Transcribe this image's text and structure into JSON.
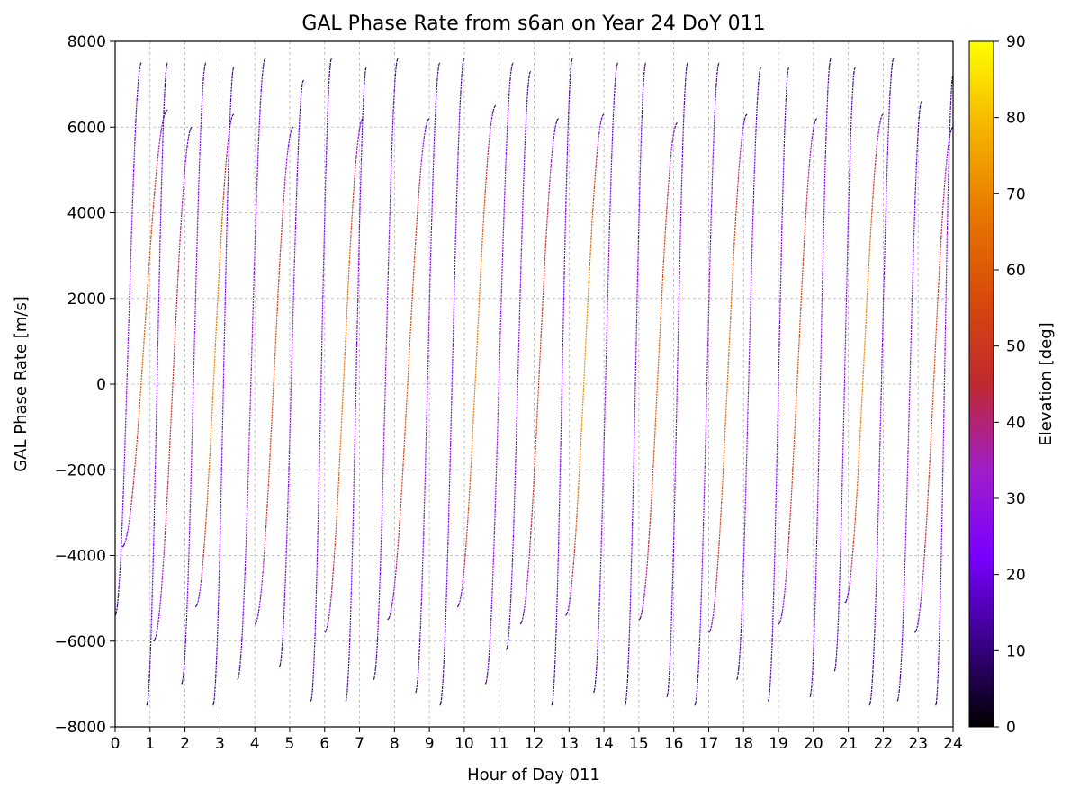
{
  "chart_data": {
    "type": "scatter",
    "title": "GAL Phase Rate from s6an on Year 24 DoY 011",
    "xlabel": "Hour of Day 011",
    "ylabel": "GAL Phase Rate [m/s]",
    "xlim": [
      0,
      24
    ],
    "ylim": [
      -8000,
      8000
    ],
    "x_ticks": [
      0,
      1,
      2,
      3,
      4,
      5,
      6,
      7,
      8,
      9,
      10,
      11,
      12,
      13,
      14,
      15,
      16,
      17,
      18,
      19,
      20,
      21,
      22,
      23,
      24
    ],
    "y_ticks": [
      -8000,
      -6000,
      -4000,
      -2000,
      0,
      2000,
      4000,
      6000,
      8000
    ],
    "grid": true,
    "colorbar": {
      "label": "Elevation [deg]",
      "range": [
        0,
        90
      ],
      "ticks": [
        0,
        10,
        20,
        30,
        40,
        50,
        60,
        70,
        80,
        90
      ],
      "colormap": "gnuplot",
      "colors": [
        "#000000",
        "#3a008a",
        "#7a00ff",
        "#a01ec8",
        "#c02830",
        "#d84a0a",
        "#e87800",
        "#f5b400",
        "#ffff00"
      ]
    },
    "series": [
      {
        "start_hour": 0.0,
        "end_hour": 0.75,
        "rate_start": -5400,
        "rate_end": 7500,
        "max_elevation_deg": 28
      },
      {
        "start_hour": 0.2,
        "end_hour": 1.5,
        "rate_start": -3800,
        "rate_end": 6400,
        "max_elevation_deg": 62
      },
      {
        "start_hour": 0.9,
        "end_hour": 1.5,
        "rate_start": -7500,
        "rate_end": 7500,
        "max_elevation_deg": 25
      },
      {
        "start_hour": 1.1,
        "end_hour": 2.2,
        "rate_start": -6000,
        "rate_end": 6000,
        "max_elevation_deg": 48
      },
      {
        "start_hour": 1.9,
        "end_hour": 2.6,
        "rate_start": -7000,
        "rate_end": 7500,
        "max_elevation_deg": 30
      },
      {
        "start_hour": 2.3,
        "end_hour": 3.4,
        "rate_start": -5200,
        "rate_end": 6300,
        "max_elevation_deg": 70
      },
      {
        "start_hour": 2.8,
        "end_hour": 3.4,
        "rate_start": -7500,
        "rate_end": 7400,
        "max_elevation_deg": 24
      },
      {
        "start_hour": 3.5,
        "end_hour": 4.3,
        "rate_start": -6900,
        "rate_end": 7600,
        "max_elevation_deg": 32
      },
      {
        "start_hour": 4.0,
        "end_hour": 5.1,
        "rate_start": -5600,
        "rate_end": 6000,
        "max_elevation_deg": 55
      },
      {
        "start_hour": 4.7,
        "end_hour": 5.4,
        "rate_start": -6600,
        "rate_end": 7100,
        "max_elevation_deg": 28
      },
      {
        "start_hour": 5.6,
        "end_hour": 6.2,
        "rate_start": -7400,
        "rate_end": 7600,
        "max_elevation_deg": 26
      },
      {
        "start_hour": 6.0,
        "end_hour": 7.1,
        "rate_start": -5800,
        "rate_end": 6200,
        "max_elevation_deg": 66
      },
      {
        "start_hour": 6.6,
        "end_hour": 7.2,
        "rate_start": -7400,
        "rate_end": 7400,
        "max_elevation_deg": 27
      },
      {
        "start_hour": 7.4,
        "end_hour": 8.1,
        "rate_start": -6900,
        "rate_end": 7600,
        "max_elevation_deg": 30
      },
      {
        "start_hour": 7.8,
        "end_hour": 9.0,
        "rate_start": -5500,
        "rate_end": 6200,
        "max_elevation_deg": 58
      },
      {
        "start_hour": 8.6,
        "end_hour": 9.3,
        "rate_start": -7200,
        "rate_end": 7500,
        "max_elevation_deg": 29
      },
      {
        "start_hour": 9.3,
        "end_hour": 10.0,
        "rate_start": -7500,
        "rate_end": 7600,
        "max_elevation_deg": 25
      },
      {
        "start_hour": 9.8,
        "end_hour": 10.9,
        "rate_start": -5200,
        "rate_end": 6500,
        "max_elevation_deg": 68
      },
      {
        "start_hour": 10.6,
        "end_hour": 11.4,
        "rate_start": -7000,
        "rate_end": 7500,
        "max_elevation_deg": 31
      },
      {
        "start_hour": 11.2,
        "end_hour": 11.9,
        "rate_start": -6200,
        "rate_end": 7300,
        "max_elevation_deg": 27
      },
      {
        "start_hour": 11.6,
        "end_hour": 12.7,
        "rate_start": -5600,
        "rate_end": 6200,
        "max_elevation_deg": 52
      },
      {
        "start_hour": 12.5,
        "end_hour": 13.1,
        "rate_start": -7500,
        "rate_end": 7600,
        "max_elevation_deg": 24
      },
      {
        "start_hour": 12.9,
        "end_hour": 14.0,
        "rate_start": -5400,
        "rate_end": 6300,
        "max_elevation_deg": 72
      },
      {
        "start_hour": 13.7,
        "end_hour": 14.4,
        "rate_start": -7200,
        "rate_end": 7500,
        "max_elevation_deg": 29
      },
      {
        "start_hour": 14.6,
        "end_hour": 15.2,
        "rate_start": -7500,
        "rate_end": 7500,
        "max_elevation_deg": 26
      },
      {
        "start_hour": 15.0,
        "end_hour": 16.1,
        "rate_start": -5500,
        "rate_end": 6100,
        "max_elevation_deg": 60
      },
      {
        "start_hour": 15.8,
        "end_hour": 16.4,
        "rate_start": -7300,
        "rate_end": 7500,
        "max_elevation_deg": 28
      },
      {
        "start_hour": 16.6,
        "end_hour": 17.3,
        "rate_start": -7500,
        "rate_end": 7500,
        "max_elevation_deg": 30
      },
      {
        "start_hour": 17.0,
        "end_hour": 18.1,
        "rate_start": -5800,
        "rate_end": 6300,
        "max_elevation_deg": 64
      },
      {
        "start_hour": 17.8,
        "end_hour": 18.5,
        "rate_start": -6900,
        "rate_end": 7400,
        "max_elevation_deg": 27
      },
      {
        "start_hour": 18.7,
        "end_hour": 19.3,
        "rate_start": -7400,
        "rate_end": 7400,
        "max_elevation_deg": 25
      },
      {
        "start_hour": 19.0,
        "end_hour": 20.1,
        "rate_start": -5600,
        "rate_end": 6200,
        "max_elevation_deg": 57
      },
      {
        "start_hour": 19.9,
        "end_hour": 20.5,
        "rate_start": -7300,
        "rate_end": 7600,
        "max_elevation_deg": 30
      },
      {
        "start_hour": 20.6,
        "end_hour": 21.2,
        "rate_start": -6700,
        "rate_end": 7400,
        "max_elevation_deg": 28
      },
      {
        "start_hour": 20.9,
        "end_hour": 22.0,
        "rate_start": -5100,
        "rate_end": 6300,
        "max_elevation_deg": 70
      },
      {
        "start_hour": 21.6,
        "end_hour": 22.3,
        "rate_start": -7500,
        "rate_end": 7600,
        "max_elevation_deg": 26
      },
      {
        "start_hour": 22.4,
        "end_hour": 23.1,
        "rate_start": -7400,
        "rate_end": 6600,
        "max_elevation_deg": 29
      },
      {
        "start_hour": 22.9,
        "end_hour": 24.0,
        "rate_start": -5800,
        "rate_end": 6000,
        "max_elevation_deg": 55
      },
      {
        "start_hour": 23.5,
        "end_hour": 24.0,
        "rate_start": -7500,
        "rate_end": 7200,
        "max_elevation_deg": 27
      }
    ]
  }
}
